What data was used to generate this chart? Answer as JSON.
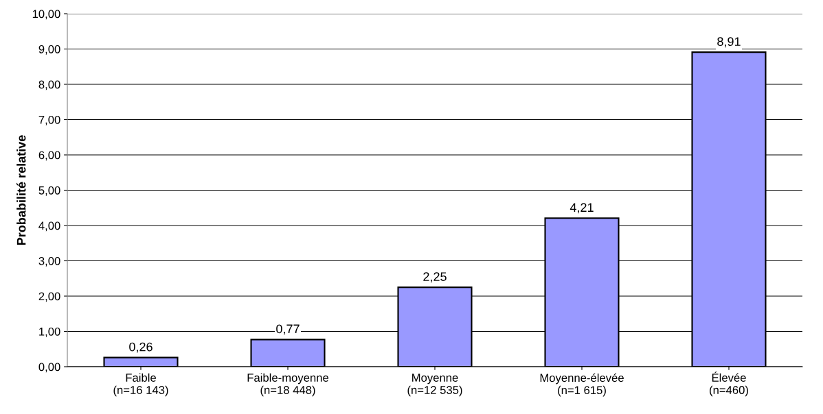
{
  "chart_data": {
    "type": "bar",
    "ylabel": "Probabilité relative",
    "categories": [
      "Faible\n(n=16 143)",
      "Faible-moyenne\n(n=18 448)",
      "Moyenne\n(n=12 535)",
      "Moyenne-élevée\n(n=1 615)",
      "Élevée\n(n=460)"
    ],
    "values": [
      0.26,
      0.77,
      2.25,
      4.21,
      8.91
    ],
    "value_labels": [
      "0,26",
      "0,77",
      "2,25",
      "4,21",
      "8,91"
    ],
    "color": "#9999ff",
    "ylim": [
      0,
      10
    ],
    "yticks": [
      {
        "value": 0,
        "label": "0,00"
      },
      {
        "value": 1,
        "label": "1,00"
      },
      {
        "value": 2,
        "label": "2,00"
      },
      {
        "value": 3,
        "label": "3,00"
      },
      {
        "value": 4,
        "label": "4,00"
      },
      {
        "value": 5,
        "label": "5,00"
      },
      {
        "value": 6,
        "label": "6,00"
      },
      {
        "value": 7,
        "label": "7,00"
      },
      {
        "value": 8,
        "label": "8,00"
      },
      {
        "value": 9,
        "label": "9,00"
      },
      {
        "value": 10,
        "label": "10,00"
      }
    ],
    "grid": "y"
  }
}
